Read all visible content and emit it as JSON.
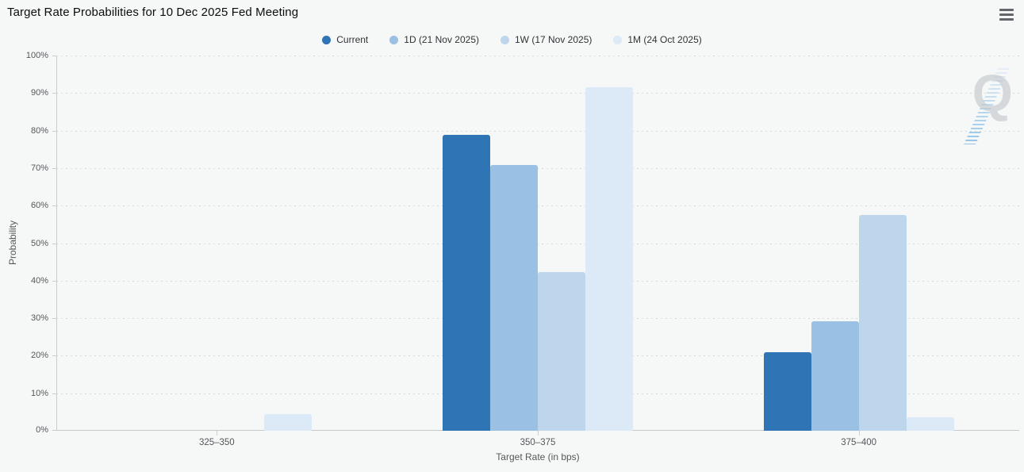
{
  "header": {
    "title": "Target Rate Probabilities for 10 Dec 2025 Fed Meeting",
    "menu_icon": "hamburger-icon"
  },
  "watermark": {
    "letter": "Q"
  },
  "chart_data": {
    "type": "bar",
    "title": "Target Rate Probabilities for 10 Dec 2025 Fed Meeting",
    "xlabel": "Target Rate (in bps)",
    "ylabel": "Probability",
    "categories": [
      "325–350",
      "350–375",
      "375–400"
    ],
    "series": [
      {
        "name": "Current",
        "color": "#2f74b4",
        "values": [
          0,
          78.9,
          21.0
        ]
      },
      {
        "name": "1D (21 Nov 2025)",
        "color": "#9ac1e3",
        "values": [
          0,
          70.8,
          29.1
        ]
      },
      {
        "name": "1W (17 Nov 2025)",
        "color": "#bed6ec",
        "values": [
          0,
          42.3,
          57.5
        ]
      },
      {
        "name": "1M (24 Oct 2025)",
        "color": "#dce9f6",
        "values": [
          4.4,
          91.5,
          3.7
        ]
      }
    ],
    "ylim": [
      0,
      100
    ],
    "ytick_step": 10,
    "ytick_suffix": "%",
    "grid": "dotted-horizontal",
    "legend_position": "top",
    "plot_background": "#f6f7f7"
  }
}
